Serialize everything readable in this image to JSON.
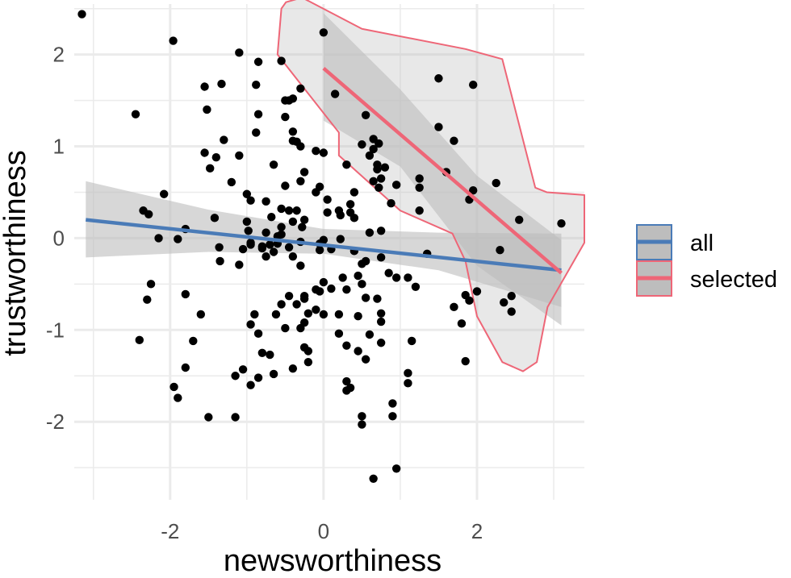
{
  "chart_data": {
    "type": "scatter",
    "xlabel": "newsworthiness",
    "ylabel": "trustworthiness",
    "xlim": [
      -3.25,
      3.4
    ],
    "ylim": [
      -2.85,
      2.55
    ],
    "x_ticks": [
      -2,
      0,
      2
    ],
    "y_ticks": [
      -2,
      -1,
      0,
      1,
      2
    ],
    "x_tick_labels": [
      "-2",
      "0",
      "2"
    ],
    "y_tick_labels": [
      "-2",
      "-1",
      "0",
      "1",
      "2"
    ],
    "grid": true,
    "legend_position": "right",
    "colors": {
      "all": "#4a7bb7",
      "selected": "#ee6677",
      "points": "#000000",
      "band": "#bdbdbd",
      "grid": "#ebebeb"
    },
    "series": [
      {
        "name": "all",
        "line": [
          [
            -3.1,
            0.2
          ],
          [
            3.1,
            -0.35
          ]
        ],
        "band_upper": [
          [
            -3.1,
            0.62
          ],
          [
            -1.5,
            0.31
          ],
          [
            0.0,
            0.1
          ],
          [
            1.5,
            0.06
          ],
          [
            3.1,
            0.05
          ]
        ],
        "band_lower": [
          [
            -3.1,
            -0.21
          ],
          [
            -1.5,
            -0.15
          ],
          [
            0.0,
            -0.17
          ],
          [
            1.5,
            -0.35
          ],
          [
            3.1,
            -0.75
          ]
        ]
      },
      {
        "name": "selected",
        "line": [
          [
            0.0,
            1.85
          ],
          [
            3.1,
            -0.38
          ]
        ],
        "band_upper": [
          [
            0.0,
            2.45
          ],
          [
            1.0,
            1.62
          ],
          [
            2.0,
            0.68
          ],
          [
            3.1,
            -0.02
          ]
        ],
        "band_lower": [
          [
            0.0,
            1.28
          ],
          [
            1.0,
            0.78
          ],
          [
            2.0,
            -0.3
          ],
          [
            3.1,
            -0.95
          ]
        ],
        "hull": [
          [
            -0.49,
            2.57
          ],
          [
            -0.28,
            2.62
          ],
          [
            0.5,
            2.28
          ],
          [
            1.85,
            2.06
          ],
          [
            2.33,
            1.95
          ],
          [
            2.76,
            0.55
          ],
          [
            2.91,
            0.5
          ],
          [
            3.4,
            0.47
          ],
          [
            3.4,
            -0.05
          ],
          [
            2.92,
            -0.75
          ],
          [
            2.78,
            -1.35
          ],
          [
            2.6,
            -1.45
          ],
          [
            2.33,
            -1.35
          ],
          [
            2.0,
            -0.85
          ],
          [
            1.85,
            -0.25
          ],
          [
            1.68,
            0.05
          ],
          [
            1.0,
            0.3
          ],
          [
            0.2,
            0.9
          ],
          [
            0.2,
            1.15
          ],
          [
            -0.6,
            2.0
          ],
          [
            -0.55,
            2.5
          ]
        ]
      }
    ],
    "points": [
      [
        -3.15,
        2.44
      ],
      [
        -1.96,
        2.15
      ],
      [
        -2.45,
        1.35
      ],
      [
        -1.1,
        2.02
      ],
      [
        -0.55,
        1.93
      ],
      [
        -0.85,
        1.92
      ],
      [
        0.0,
        2.24
      ],
      [
        -1.33,
        1.68
      ],
      [
        -1.55,
        1.65
      ],
      [
        -0.88,
        1.67
      ],
      [
        -0.5,
        1.5
      ],
      [
        -0.45,
        1.5
      ],
      [
        -0.4,
        1.52
      ],
      [
        -0.3,
        1.63
      ],
      [
        -1.52,
        1.4
      ],
      [
        -0.85,
        1.35
      ],
      [
        -0.5,
        1.32
      ],
      [
        0.15,
        1.57
      ],
      [
        -0.4,
        1.16
      ],
      [
        -0.88,
        1.15
      ],
      [
        -0.4,
        1.06
      ],
      [
        -0.35,
        1.05
      ],
      [
        -0.3,
        1.0
      ],
      [
        -0.1,
        0.95
      ],
      [
        0.0,
        0.93
      ],
      [
        -1.3,
        1.07
      ],
      [
        -1.55,
        0.93
      ],
      [
        -1.4,
        0.88
      ],
      [
        -1.1,
        0.9
      ],
      [
        -1.48,
        0.76
      ],
      [
        -0.65,
        0.8
      ],
      [
        -0.25,
        0.72
      ],
      [
        -1.2,
        0.61
      ],
      [
        -0.3,
        0.62
      ],
      [
        -0.5,
        0.57
      ],
      [
        -0.05,
        0.56
      ],
      [
        -0.1,
        0.5
      ],
      [
        -1.0,
        0.48
      ],
      [
        -0.95,
        0.41
      ],
      [
        -2.08,
        0.48
      ],
      [
        -0.75,
        0.4
      ],
      [
        -0.55,
        0.32
      ],
      [
        -0.45,
        0.3
      ],
      [
        -0.35,
        0.3
      ],
      [
        -0.4,
        0.18
      ],
      [
        -0.25,
        0.2
      ],
      [
        -0.28,
        0.12
      ],
      [
        -0.55,
        0.12
      ],
      [
        -0.68,
        0.23
      ],
      [
        -2.28,
        0.26
      ],
      [
        -2.35,
        0.3
      ],
      [
        -1.8,
        0.1
      ],
      [
        -1.42,
        0.22
      ],
      [
        -1.0,
        0.18
      ],
      [
        -0.75,
        0.06
      ],
      [
        -0.98,
        0.08
      ],
      [
        -0.55,
        0.04
      ],
      [
        -0.6,
        0.02
      ],
      [
        -2.15,
        0.0
      ],
      [
        -1.9,
        -0.01
      ],
      [
        -1.36,
        -0.1
      ],
      [
        -0.95,
        -0.07
      ],
      [
        -0.8,
        -0.11
      ],
      [
        -0.7,
        -0.07
      ],
      [
        -0.6,
        -0.06
      ],
      [
        -0.45,
        -0.1
      ],
      [
        -0.3,
        -0.04
      ],
      [
        -0.05,
        -0.06
      ],
      [
        -1.35,
        -0.25
      ],
      [
        -1.1,
        -0.29
      ],
      [
        -1.05,
        -0.12
      ],
      [
        -0.95,
        -0.05
      ],
      [
        -0.8,
        -0.09
      ],
      [
        -0.75,
        -0.2
      ],
      [
        -0.65,
        -0.15
      ],
      [
        -0.4,
        -0.2
      ],
      [
        -0.3,
        -0.3
      ],
      [
        -0.05,
        -0.13
      ],
      [
        0.05,
        0.42
      ],
      [
        0.05,
        0.28
      ],
      [
        0.2,
        0.3
      ],
      [
        0.22,
        0.25
      ],
      [
        0.35,
        0.28
      ],
      [
        0.35,
        0.37
      ],
      [
        0.4,
        0.5
      ],
      [
        0.4,
        0.22
      ],
      [
        0.6,
        0.9
      ],
      [
        0.7,
        0.8
      ],
      [
        0.7,
        0.75
      ],
      [
        0.75,
        0.65
      ],
      [
        0.3,
        0.8
      ],
      [
        0.5,
        1.02
      ],
      [
        0.55,
        1.34
      ],
      [
        0.65,
        1.08
      ],
      [
        0.65,
        0.97
      ],
      [
        0.72,
        1.03
      ],
      [
        0.95,
        0.58
      ],
      [
        0.8,
        0.77
      ],
      [
        0.72,
        0.55
      ],
      [
        0.65,
        0.62
      ],
      [
        0.88,
        0.38
      ],
      [
        1.25,
        0.65
      ],
      [
        1.25,
        0.55
      ],
      [
        1.25,
        0.3
      ],
      [
        1.5,
        1.21
      ],
      [
        1.7,
        1.06
      ],
      [
        1.95,
        1.67
      ],
      [
        1.5,
        1.74
      ],
      [
        1.6,
        0.72
      ],
      [
        1.95,
        0.52
      ],
      [
        1.9,
        0.42
      ],
      [
        2.25,
        0.6
      ],
      [
        2.55,
        0.2
      ],
      [
        3.1,
        0.16
      ],
      [
        2.3,
        -0.13
      ],
      [
        0.0,
        -0.02
      ],
      [
        0.22,
        -0.01
      ],
      [
        0.1,
        -0.12
      ],
      [
        0.4,
        -0.14
      ],
      [
        0.5,
        -0.28
      ],
      [
        0.75,
        -0.21
      ],
      [
        0.6,
        0.06
      ],
      [
        0.75,
        0.08
      ],
      [
        1.35,
        -0.17
      ],
      [
        0.55,
        -0.25
      ],
      [
        0.25,
        -0.43
      ],
      [
        0.45,
        -0.41
      ],
      [
        0.5,
        -0.5
      ],
      [
        0.85,
        -0.38
      ],
      [
        0.95,
        -0.43
      ],
      [
        1.1,
        -0.43
      ],
      [
        1.2,
        -0.53
      ],
      [
        0.3,
        -0.56
      ],
      [
        0.0,
        -0.48
      ],
      [
        -0.1,
        -0.56
      ],
      [
        -0.05,
        -0.58
      ],
      [
        0.1,
        -0.55
      ],
      [
        -0.25,
        -0.63
      ],
      [
        -0.25,
        -0.66
      ],
      [
        -0.35,
        -0.72
      ],
      [
        -0.45,
        -0.63
      ],
      [
        -0.55,
        -0.72
      ],
      [
        0.55,
        -0.65
      ],
      [
        0.7,
        -0.66
      ],
      [
        0.75,
        -0.82
      ],
      [
        -0.1,
        -0.78
      ],
      [
        0.0,
        -0.83
      ],
      [
        0.2,
        -0.83
      ],
      [
        0.45,
        -0.85
      ],
      [
        -0.2,
        -0.82
      ],
      [
        -0.25,
        -0.92
      ],
      [
        -0.3,
        -0.98
      ],
      [
        -0.5,
        -0.98
      ],
      [
        -0.62,
        -0.83
      ],
      [
        -0.9,
        -0.83
      ],
      [
        -0.95,
        -0.94
      ],
      [
        -1.6,
        -0.83
      ],
      [
        -1.7,
        -1.12
      ],
      [
        -1.8,
        -0.61
      ],
      [
        -2.3,
        -0.67
      ],
      [
        -2.25,
        -0.5
      ],
      [
        -2.4,
        -1.11
      ],
      [
        0.3,
        -1.17
      ],
      [
        0.45,
        -1.23
      ],
      [
        0.55,
        -1.32
      ],
      [
        0.75,
        -1.14
      ],
      [
        0.2,
        -1.04
      ],
      [
        0.6,
        -1.05
      ],
      [
        0.75,
        -0.91
      ],
      [
        1.15,
        -1.12
      ],
      [
        -0.25,
        -1.19
      ],
      [
        -0.2,
        -1.23
      ],
      [
        -0.2,
        -1.35
      ],
      [
        -0.4,
        -1.42
      ],
      [
        -0.85,
        -1.04
      ],
      [
        -0.8,
        -1.25
      ],
      [
        -0.7,
        -1.27
      ],
      [
        -0.65,
        -1.48
      ],
      [
        -0.85,
        -1.52
      ],
      [
        -0.95,
        -1.6
      ],
      [
        -1.05,
        -1.43
      ],
      [
        -1.15,
        -1.5
      ],
      [
        -1.8,
        -1.41
      ],
      [
        -1.95,
        -1.62
      ],
      [
        -1.9,
        -1.74
      ],
      [
        -1.5,
        -1.95
      ],
      [
        -1.15,
        -1.95
      ],
      [
        0.3,
        -1.56
      ],
      [
        0.3,
        -1.66
      ],
      [
        0.35,
        -1.63
      ],
      [
        0.5,
        -1.94
      ],
      [
        0.5,
        -2.03
      ],
      [
        0.9,
        -1.8
      ],
      [
        0.9,
        -1.94
      ],
      [
        1.1,
        -1.47
      ],
      [
        1.1,
        -1.58
      ],
      [
        0.65,
        -2.62
      ],
      [
        0.95,
        -2.51
      ],
      [
        1.7,
        -0.75
      ],
      [
        1.85,
        -0.62
      ],
      [
        2.0,
        -0.58
      ],
      [
        1.9,
        -0.68
      ],
      [
        1.8,
        -0.93
      ],
      [
        2.45,
        -0.63
      ],
      [
        2.35,
        -0.7
      ],
      [
        2.45,
        -0.8
      ],
      [
        1.85,
        -1.34
      ]
    ]
  }
}
